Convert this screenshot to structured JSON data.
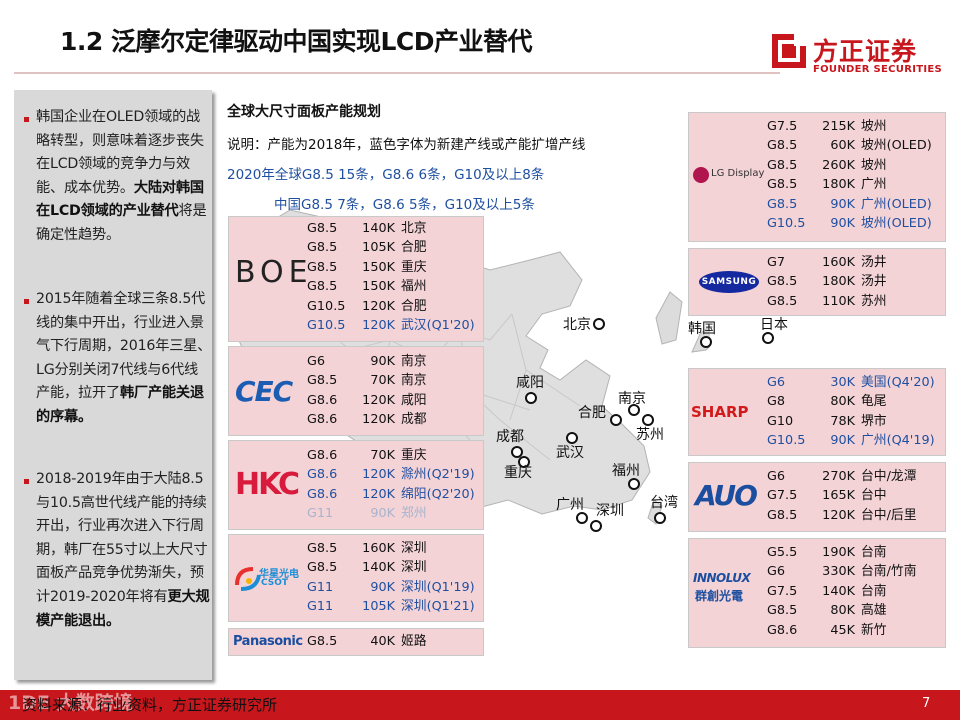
{
  "header": {
    "title": "1.2 泛摩尔定律驱动中国实现LCD产业替代",
    "brand_cn": "方正证券",
    "brand_en": "FOUNDER SECURITIES",
    "brand_color": "#c8161d"
  },
  "sidebar": {
    "p1": {
      "a": "韩国企业在OLED领域的战略转型，则意味着逐步丧失在LCD领域的竞争力与效能、成本优势。",
      "b": "大陆对韩国在LCD领域的产业替代",
      "c": "将是确定性趋势。"
    },
    "p2": {
      "a": "2015年随着全球三条8.5代线的集中开出，行业进入景气下行周期，2016年三星、LG分别关闭7代线与6代线产能，拉开了",
      "b": "韩厂产能关退的序幕。",
      "c": ""
    },
    "p3": {
      "a": "2018-2019年由于大陆8.5与10.5高世代线产能的持续开出，行业再次进入下行周期，韩厂在55寸以上大尺寸面板产品竞争优势渐失，预计2019-2020年将有",
      "b": "更大规模产能退出。",
      "c": ""
    }
  },
  "center": {
    "heading": "全球大尺寸面板产能规划",
    "note": "说明：产能为2018年，蓝色字体为新建产线或产能扩增产线",
    "global_line": "2020年全球G8.5  15条，G8.6  6条，G10及以上8条",
    "china_line": "中国G8.5   7条，G8.6  5条，G10及以上5条"
  },
  "companies": {
    "boe": {
      "logo": "BOE",
      "rows": [
        {
          "gen": "G8.5",
          "cap": "140K",
          "loc": "北京",
          "style": "normal"
        },
        {
          "gen": "G8.5",
          "cap": "105K",
          "loc": "合肥",
          "style": "normal"
        },
        {
          "gen": "G8.5",
          "cap": "150K",
          "loc": "重庆",
          "style": "normal"
        },
        {
          "gen": "G8.5",
          "cap": "150K",
          "loc": "福州",
          "style": "normal"
        },
        {
          "gen": "G10.5",
          "cap": "120K",
          "loc": "合肥",
          "style": "normal"
        },
        {
          "gen": "G10.5",
          "cap": "120K",
          "loc": "武汉(Q1'20)",
          "style": "blue"
        }
      ]
    },
    "cec": {
      "logo": "CEC",
      "rows": [
        {
          "gen": "G6",
          "cap": "90K",
          "loc": "南京",
          "style": "normal"
        },
        {
          "gen": "G8.5",
          "cap": "70K",
          "loc": "南京",
          "style": "normal"
        },
        {
          "gen": "G8.6",
          "cap": "120K",
          "loc": "咸阳",
          "style": "normal"
        },
        {
          "gen": "G8.6",
          "cap": "120K",
          "loc": "成都",
          "style": "normal"
        }
      ]
    },
    "hkc": {
      "logo": "HKC",
      "rows": [
        {
          "gen": "G8.6",
          "cap": "70K",
          "loc": "重庆",
          "style": "normal"
        },
        {
          "gen": "G8.6",
          "cap": "120K",
          "loc": "滁州(Q2'19)",
          "style": "blue"
        },
        {
          "gen": "G8.6",
          "cap": "120K",
          "loc": "绵阳(Q2'20)",
          "style": "blue"
        },
        {
          "gen": "G11",
          "cap": "90K",
          "loc": "郑州",
          "style": "faded"
        }
      ]
    },
    "csot": {
      "logo_cn": "华星光电",
      "logo_en": "CSOT",
      "rows": [
        {
          "gen": "G8.5",
          "cap": "160K",
          "loc": "深圳",
          "style": "normal"
        },
        {
          "gen": "G8.5",
          "cap": "140K",
          "loc": "深圳",
          "style": "normal"
        },
        {
          "gen": "G11",
          "cap": "90K",
          "loc": "深圳(Q1'19)",
          "style": "blue"
        },
        {
          "gen": "G11",
          "cap": "105K",
          "loc": "深圳(Q1'21)",
          "style": "blue"
        }
      ]
    },
    "panasonic": {
      "logo": "Panasonic",
      "rows": [
        {
          "gen": "G8.5",
          "cap": "40K",
          "loc": "姬路",
          "style": "normal"
        }
      ]
    },
    "lg": {
      "logo": "LG Display",
      "rows": [
        {
          "gen": "G7.5",
          "cap": "215K",
          "loc": "坡州",
          "style": "normal"
        },
        {
          "gen": "G8.5",
          "cap": "60K",
          "loc": "坡州(OLED)",
          "style": "normal"
        },
        {
          "gen": "G8.5",
          "cap": "260K",
          "loc": "坡州",
          "style": "normal"
        },
        {
          "gen": "G8.5",
          "cap": "180K",
          "loc": "广州",
          "style": "normal"
        },
        {
          "gen": "G8.5",
          "cap": "90K",
          "loc": "广州(OLED)",
          "style": "blue"
        },
        {
          "gen": "G10.5",
          "cap": "90K",
          "loc": "坡州(OLED)",
          "style": "blue"
        }
      ]
    },
    "samsung": {
      "logo": "SAMSUNG",
      "rows": [
        {
          "gen": "G7",
          "cap": "160K",
          "loc": "汤井",
          "style": "normal"
        },
        {
          "gen": "G8.5",
          "cap": "180K",
          "loc": "汤井",
          "style": "normal"
        },
        {
          "gen": "G8.5",
          "cap": "110K",
          "loc": "苏州",
          "style": "normal"
        }
      ]
    },
    "sharp": {
      "logo": "SHARP",
      "rows": [
        {
          "gen": "G6",
          "cap": "30K",
          "loc": "美国(Q4'20)",
          "style": "blue"
        },
        {
          "gen": "G8",
          "cap": "80K",
          "loc": "龟尾",
          "style": "normal"
        },
        {
          "gen": "G10",
          "cap": "78K",
          "loc": "堺市",
          "style": "normal"
        },
        {
          "gen": "G10.5",
          "cap": "90K",
          "loc": "广州(Q4'19)",
          "style": "blue"
        }
      ]
    },
    "auo": {
      "logo": "AUO",
      "rows": [
        {
          "gen": "G6",
          "cap": "270K",
          "loc": "台中/龙潭",
          "style": "normal"
        },
        {
          "gen": "G7.5",
          "cap": "165K",
          "loc": "台中",
          "style": "normal"
        },
        {
          "gen": "G8.5",
          "cap": "120K",
          "loc": "台中/后里",
          "style": "normal"
        }
      ]
    },
    "innolux": {
      "logo_en": "INNOLUX",
      "logo_cn": "群創光電",
      "rows": [
        {
          "gen": "G5.5",
          "cap": "190K",
          "loc": "台南",
          "style": "normal"
        },
        {
          "gen": "G6",
          "cap": "330K",
          "loc": "台南/竹南",
          "style": "normal"
        },
        {
          "gen": "G7.5",
          "cap": "140K",
          "loc": "台南",
          "style": "normal"
        },
        {
          "gen": "G8.5",
          "cap": "80K",
          "loc": "高雄",
          "style": "normal"
        },
        {
          "gen": "G8.6",
          "cap": "45K",
          "loc": "新竹",
          "style": "normal"
        }
      ]
    }
  },
  "map_labels": {
    "beijing": "北京",
    "korea": "韩国",
    "japan": "日本",
    "xianyang": "咸阳",
    "nanjing": "南京",
    "hefei": "合肥",
    "suzhou": "苏州",
    "chengdu": "成都",
    "wuhan": "武汉",
    "chongqing": "重庆",
    "fuzhou": "福州",
    "guangzhou": "广州",
    "shenzhen": "深圳",
    "taiwan": "台湾"
  },
  "footer": {
    "source": "资料来源：行业资料，方正证券研究所",
    "page": "7",
    "watermark": "1DE 大数跨境"
  }
}
